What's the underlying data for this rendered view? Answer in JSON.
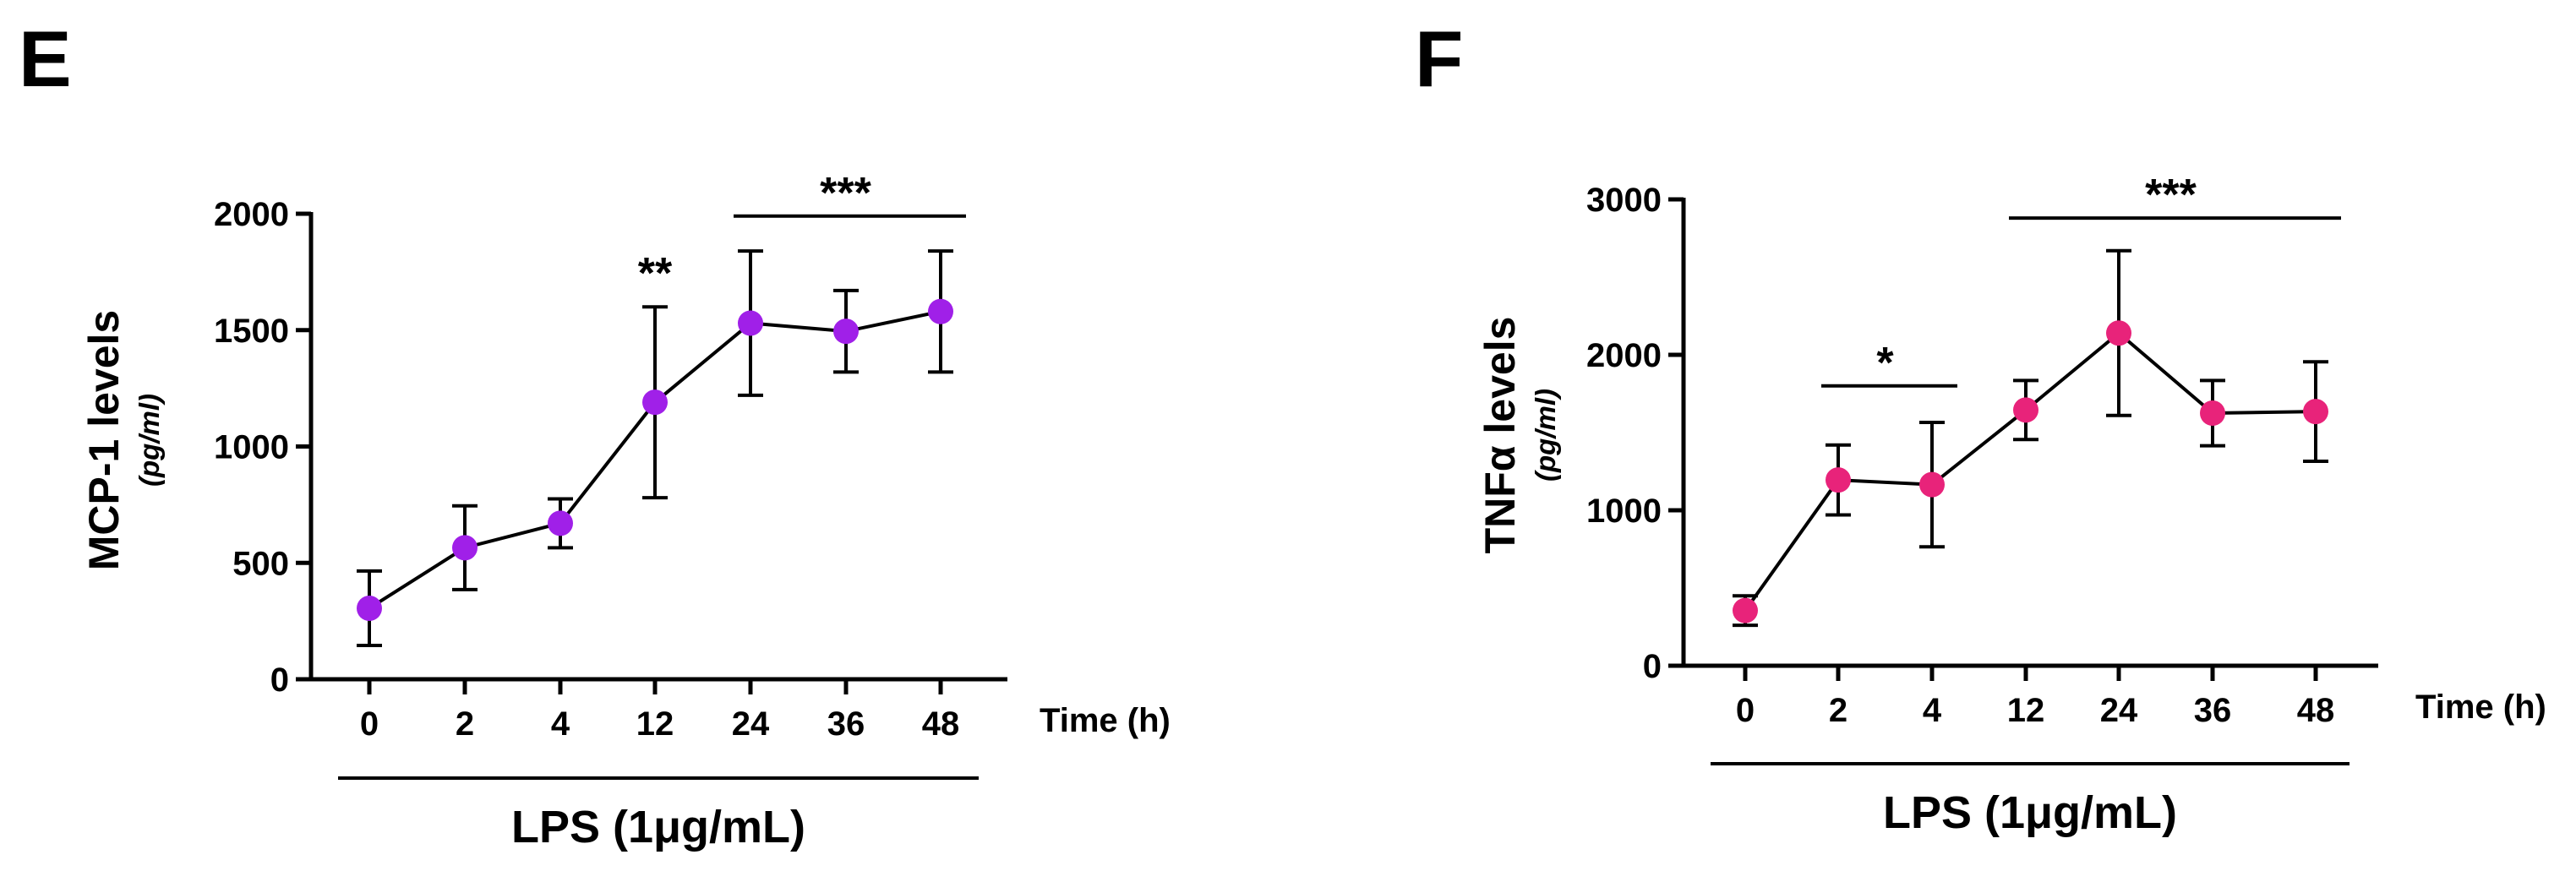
{
  "chart_data": [
    {
      "type": "line",
      "panel": "E",
      "ylabel": "MCP-1 levels",
      "ylabel_unit": "(pg/ml)",
      "xlabel": "Time (h)",
      "group_label": "LPS (1μg/mL)",
      "categories": [
        "0",
        "2",
        "4",
        "12",
        "24",
        "36",
        "48"
      ],
      "ylim": [
        0,
        2000
      ],
      "yticks": [
        "0",
        "500",
        "1000",
        "1500",
        "2000"
      ],
      "series": [
        {
          "name": "MCP-1",
          "color": "#A020E8",
          "values": [
            305,
            565,
            670,
            1190,
            1530,
            1495,
            1580
          ],
          "errors": [
            160,
            180,
            105,
            410,
            310,
            175,
            260
          ]
        }
      ],
      "annotations": [
        {
          "text": "**",
          "from": 3,
          "to": 3,
          "y": 1680
        },
        {
          "text": "***",
          "from": 4,
          "to": 6,
          "y": 1990
        }
      ]
    },
    {
      "type": "line",
      "panel": "F",
      "ylabel": "TNFα levels",
      "ylabel_unit": "(pg/ml)",
      "xlabel": "Time (h)",
      "group_label": "LPS (1μg/mL)",
      "categories": [
        "0",
        "2",
        "4",
        "12",
        "24",
        "36",
        "48"
      ],
      "ylim": [
        0,
        3000
      ],
      "yticks": [
        "0",
        "1000",
        "2000",
        "3000"
      ],
      "series": [
        {
          "name": "TNFα",
          "color": "#E8237A",
          "values": [
            355,
            1195,
            1165,
            1645,
            2140,
            1625,
            1635
          ],
          "errors": [
            95,
            225,
            400,
            190,
            530,
            210,
            320
          ]
        }
      ],
      "annotations": [
        {
          "text": "*",
          "from": 1,
          "to": 2,
          "y": 1800
        },
        {
          "text": "***",
          "from": 3,
          "to": 6,
          "y": 2880
        }
      ]
    }
  ]
}
